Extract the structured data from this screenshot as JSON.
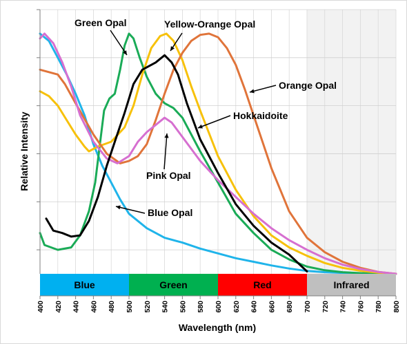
{
  "chart_data": {
    "type": "line",
    "xlabel": "Wavelength (nm)",
    "ylabel": "Relative Intensity",
    "xlim": [
      400,
      800
    ],
    "ylim": [
      0,
      11
    ],
    "x_ticks": [
      400,
      420,
      440,
      460,
      480,
      500,
      520,
      540,
      560,
      580,
      600,
      620,
      640,
      660,
      680,
      700,
      720,
      740,
      760,
      780,
      800
    ],
    "grid": {
      "vertical": true,
      "horizontal": true
    },
    "legend": "none (series labeled by annotations)",
    "shaded_region": {
      "from": 700,
      "to": 800,
      "color": "#f2f2f2"
    },
    "bands": [
      {
        "label": "Blue",
        "from": 400,
        "to": 500,
        "color": "#00b0f0"
      },
      {
        "label": "Green",
        "from": 500,
        "to": 600,
        "color": "#00b050"
      },
      {
        "label": "Red",
        "from": 600,
        "to": 700,
        "color": "#ff0000"
      },
      {
        "label": "Infrared",
        "from": 700,
        "to": 800,
        "color": "#bfbfbf"
      }
    ],
    "series": [
      {
        "name": "Blue Opal",
        "color": "#1fb4ea",
        "points": [
          [
            400,
            10.0
          ],
          [
            410,
            9.7
          ],
          [
            420,
            9.0
          ],
          [
            430,
            8.3
          ],
          [
            440,
            7.5
          ],
          [
            450,
            6.6
          ],
          [
            460,
            5.4
          ],
          [
            470,
            4.5
          ],
          [
            480,
            3.8
          ],
          [
            490,
            3.1
          ],
          [
            500,
            2.5
          ],
          [
            520,
            1.9
          ],
          [
            540,
            1.5
          ],
          [
            560,
            1.3
          ],
          [
            580,
            1.05
          ],
          [
            600,
            0.85
          ],
          [
            620,
            0.65
          ],
          [
            640,
            0.5
          ],
          [
            660,
            0.35
          ],
          [
            680,
            0.22
          ],
          [
            700,
            0.12
          ],
          [
            720,
            0.07
          ],
          [
            740,
            0.04
          ],
          [
            760,
            0.02
          ],
          [
            780,
            0.01
          ],
          [
            800,
            0.0
          ]
        ]
      },
      {
        "name": "Green Opal",
        "color": "#1aab57",
        "points": [
          [
            400,
            1.7
          ],
          [
            405,
            1.2
          ],
          [
            420,
            1.0
          ],
          [
            435,
            1.1
          ],
          [
            445,
            1.6
          ],
          [
            455,
            2.6
          ],
          [
            462,
            3.8
          ],
          [
            468,
            5.6
          ],
          [
            472,
            6.8
          ],
          [
            478,
            7.3
          ],
          [
            484,
            7.5
          ],
          [
            490,
            8.5
          ],
          [
            495,
            9.5
          ],
          [
            500,
            10.0
          ],
          [
            505,
            9.8
          ],
          [
            512,
            9.0
          ],
          [
            520,
            8.2
          ],
          [
            530,
            7.5
          ],
          [
            540,
            7.1
          ],
          [
            550,
            6.9
          ],
          [
            560,
            6.5
          ],
          [
            580,
            5.1
          ],
          [
            600,
            3.8
          ],
          [
            620,
            2.5
          ],
          [
            640,
            1.7
          ],
          [
            660,
            1.0
          ],
          [
            680,
            0.6
          ],
          [
            700,
            0.3
          ],
          [
            720,
            0.15
          ],
          [
            740,
            0.07
          ],
          [
            760,
            0.03
          ],
          [
            780,
            0.01
          ],
          [
            800,
            0.0
          ]
        ]
      },
      {
        "name": "Yellow-Orange Opal",
        "color": "#f7c10a",
        "points": [
          [
            400,
            7.6
          ],
          [
            410,
            7.4
          ],
          [
            420,
            7.0
          ],
          [
            430,
            6.4
          ],
          [
            440,
            5.8
          ],
          [
            450,
            5.3
          ],
          [
            455,
            5.1
          ],
          [
            465,
            5.3
          ],
          [
            480,
            5.5
          ],
          [
            495,
            6.1
          ],
          [
            505,
            7.0
          ],
          [
            515,
            8.3
          ],
          [
            525,
            9.4
          ],
          [
            535,
            9.9
          ],
          [
            542,
            10.0
          ],
          [
            550,
            9.7
          ],
          [
            560,
            8.9
          ],
          [
            570,
            7.8
          ],
          [
            580,
            6.8
          ],
          [
            600,
            4.9
          ],
          [
            620,
            3.5
          ],
          [
            640,
            2.4
          ],
          [
            660,
            1.6
          ],
          [
            680,
            1.1
          ],
          [
            700,
            0.75
          ],
          [
            720,
            0.45
          ],
          [
            740,
            0.25
          ],
          [
            760,
            0.13
          ],
          [
            780,
            0.05
          ],
          [
            800,
            0.0
          ]
        ]
      },
      {
        "name": "Orange Opal",
        "color": "#e0743a",
        "points": [
          [
            400,
            8.5
          ],
          [
            410,
            8.4
          ],
          [
            420,
            8.3
          ],
          [
            428,
            7.9
          ],
          [
            440,
            7.1
          ],
          [
            460,
            5.8
          ],
          [
            475,
            5.0
          ],
          [
            490,
            4.6
          ],
          [
            500,
            4.7
          ],
          [
            510,
            4.9
          ],
          [
            520,
            5.4
          ],
          [
            530,
            6.4
          ],
          [
            540,
            7.5
          ],
          [
            550,
            8.5
          ],
          [
            560,
            9.2
          ],
          [
            570,
            9.7
          ],
          [
            580,
            9.95
          ],
          [
            590,
            10.0
          ],
          [
            600,
            9.85
          ],
          [
            610,
            9.4
          ],
          [
            620,
            8.7
          ],
          [
            630,
            7.7
          ],
          [
            640,
            6.6
          ],
          [
            660,
            4.4
          ],
          [
            680,
            2.6
          ],
          [
            700,
            1.5
          ],
          [
            720,
            0.9
          ],
          [
            740,
            0.5
          ],
          [
            760,
            0.25
          ],
          [
            780,
            0.08
          ],
          [
            800,
            0.0
          ]
        ]
      },
      {
        "name": "Pink Opal",
        "color": "#d66fd0",
        "points": [
          [
            400,
            9.8
          ],
          [
            405,
            10.0
          ],
          [
            415,
            9.6
          ],
          [
            425,
            8.8
          ],
          [
            435,
            7.8
          ],
          [
            445,
            6.6
          ],
          [
            460,
            5.5
          ],
          [
            475,
            4.8
          ],
          [
            487,
            4.6
          ],
          [
            500,
            4.9
          ],
          [
            510,
            5.5
          ],
          [
            520,
            5.9
          ],
          [
            530,
            6.2
          ],
          [
            540,
            6.5
          ],
          [
            548,
            6.3
          ],
          [
            560,
            5.7
          ],
          [
            580,
            4.7
          ],
          [
            600,
            3.9
          ],
          [
            620,
            3.2
          ],
          [
            640,
            2.5
          ],
          [
            660,
            1.9
          ],
          [
            680,
            1.4
          ],
          [
            700,
            1.0
          ],
          [
            720,
            0.65
          ],
          [
            740,
            0.38
          ],
          [
            760,
            0.2
          ],
          [
            780,
            0.08
          ],
          [
            800,
            0.0
          ]
        ]
      },
      {
        "name": "Hokkaidoite",
        "color": "#000000",
        "points": [
          [
            407,
            2.3
          ],
          [
            415,
            1.8
          ],
          [
            425,
            1.7
          ],
          [
            435,
            1.55
          ],
          [
            445,
            1.6
          ],
          [
            455,
            2.2
          ],
          [
            465,
            3.2
          ],
          [
            475,
            4.5
          ],
          [
            485,
            5.6
          ],
          [
            495,
            6.7
          ],
          [
            505,
            7.9
          ],
          [
            515,
            8.5
          ],
          [
            530,
            8.8
          ],
          [
            540,
            9.1
          ],
          [
            548,
            8.8
          ],
          [
            555,
            8.3
          ],
          [
            565,
            7.1
          ],
          [
            580,
            5.6
          ],
          [
            600,
            4.2
          ],
          [
            620,
            2.9
          ],
          [
            640,
            2.0
          ],
          [
            660,
            1.3
          ],
          [
            680,
            0.8
          ],
          [
            700,
            0.1
          ]
        ]
      }
    ],
    "annotations": [
      {
        "text": "Green Opal",
        "series": "Green Opal"
      },
      {
        "text": "Yellow-Orange Opal",
        "series": "Yellow-Orange Opal"
      },
      {
        "text": "Orange Opal",
        "series": "Orange Opal"
      },
      {
        "text": "Hokkaidoite",
        "series": "Hokkaidoite"
      },
      {
        "text": "Pink Opal",
        "series": "Pink Opal"
      },
      {
        "text": "Blue Opal",
        "series": "Blue Opal"
      }
    ]
  }
}
